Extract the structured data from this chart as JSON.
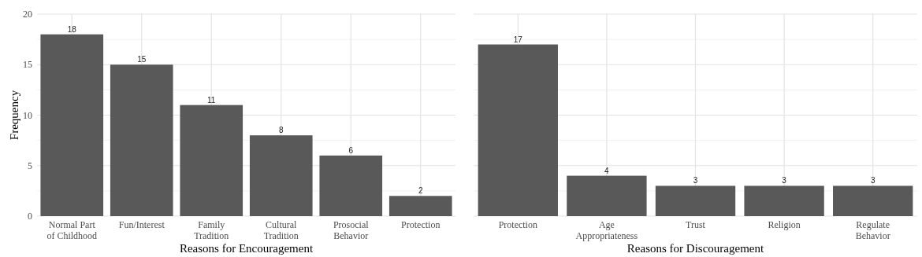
{
  "chart_data": [
    {
      "type": "bar",
      "xlabel": "Reasons for Encouragement",
      "ylabel": "Frequency",
      "categories": [
        "Normal Part\nof Childhood",
        "Fun/Interest",
        "Family\nTradition",
        "Cultural\nTradition",
        "Prosocial\nBehavior",
        "Protection"
      ],
      "values": [
        18,
        15,
        11,
        8,
        6,
        2
      ],
      "color": "#595959",
      "ylim": [
        0,
        20
      ],
      "yticks": [
        0,
        5,
        10,
        15,
        20
      ],
      "grid": true,
      "data_labels": true
    },
    {
      "type": "bar",
      "xlabel": "Reasons for Discouragement",
      "categories": [
        "Protection",
        "Age\nAppropriateness",
        "Trust",
        "Religion",
        "Regulate\nBehavior"
      ],
      "values": [
        17,
        4,
        3,
        3,
        3
      ],
      "color": "#595959",
      "ylim": [
        0,
        20
      ],
      "yticks": [
        {
          "value": 0,
          "label": null
        },
        {
          "value": 5,
          "label": null
        },
        {
          "value": 10,
          "label": null
        },
        {
          "value": 15,
          "label": null
        },
        {
          "value": 20,
          "label": null
        }
      ],
      "grid": true,
      "data_labels": true,
      "tick_labels": "x"
    }
  ]
}
